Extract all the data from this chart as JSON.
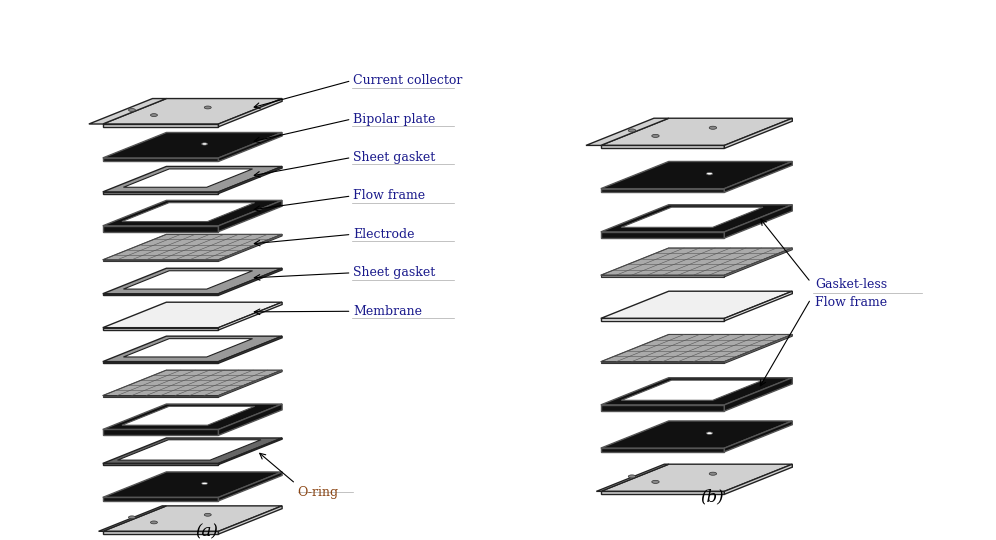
{
  "title_a": "(a)",
  "title_b": "(b)",
  "label_color": "#1a1a8c",
  "annotation_color": "#8b4513",
  "bg_color": "#ffffff",
  "layers_a": [
    {
      "name": "Current collector",
      "type": "current_collector",
      "color": "#d0d0d0",
      "label_idx": 0
    },
    {
      "name": "Bipolar plate",
      "type": "solid_plate",
      "color": "#111111",
      "label_idx": 1
    },
    {
      "name": "Sheet gasket",
      "type": "frame_plate",
      "color": "#888888",
      "label_idx": 2
    },
    {
      "name": "Flow frame",
      "type": "frame_thick",
      "color": "#111111",
      "label_idx": 3
    },
    {
      "name": "Electrode",
      "type": "electrode",
      "color": "#aaaaaa",
      "label_idx": 4
    },
    {
      "name": "Sheet gasket",
      "type": "frame_plate",
      "color": "#888888",
      "label_idx": 5
    },
    {
      "name": "Membrane",
      "type": "solid_plate_light",
      "color": "#eeeeee",
      "label_idx": 6
    },
    {
      "name": "Sheet gasket",
      "type": "frame_plate",
      "color": "#888888",
      "label_idx": -1
    },
    {
      "name": "Electrode",
      "type": "electrode",
      "color": "#aaaaaa",
      "label_idx": -1
    },
    {
      "name": "Flow frame",
      "type": "frame_thick",
      "color": "#111111",
      "label_idx": -1
    },
    {
      "name": "O-ring",
      "type": "frame_thin",
      "color": "#666666",
      "label_idx": 7
    },
    {
      "name": "Bipolar plate",
      "type": "solid_plate",
      "color": "#111111",
      "label_idx": -1
    },
    {
      "name": "Current collector",
      "type": "current_collector_bot",
      "color": "#d0d0d0",
      "label_idx": -1
    }
  ],
  "layers_b": [
    {
      "name": "Current collector",
      "type": "current_collector",
      "color": "#d0d0d0",
      "gff": false
    },
    {
      "name": "Bipolar plate",
      "type": "solid_plate",
      "color": "#111111",
      "gff": false
    },
    {
      "name": "Gasket-less Flow frame",
      "type": "frame_thick",
      "color": "#111111",
      "gff": true
    },
    {
      "name": "Electrode",
      "type": "electrode",
      "color": "#aaaaaa",
      "gff": false
    },
    {
      "name": "Membrane",
      "type": "solid_plate_light",
      "color": "#eeeeee",
      "gff": false
    },
    {
      "name": "Electrode",
      "type": "electrode",
      "color": "#aaaaaa",
      "gff": false
    },
    {
      "name": "Gasket-less Flow frame",
      "type": "frame_thick",
      "color": "#111111",
      "gff": true
    },
    {
      "name": "Bipolar plate",
      "type": "solid_plate",
      "color": "#111111",
      "gff": false
    },
    {
      "name": "Current collector",
      "type": "current_collector_bot",
      "color": "#d0d0d0",
      "gff": false
    }
  ],
  "label_names": [
    "Current collector",
    "Bipolar plate",
    "Sheet gasket",
    "Flow frame",
    "Electrode",
    "Sheet gasket",
    "Membrane",
    "O-ring"
  ]
}
